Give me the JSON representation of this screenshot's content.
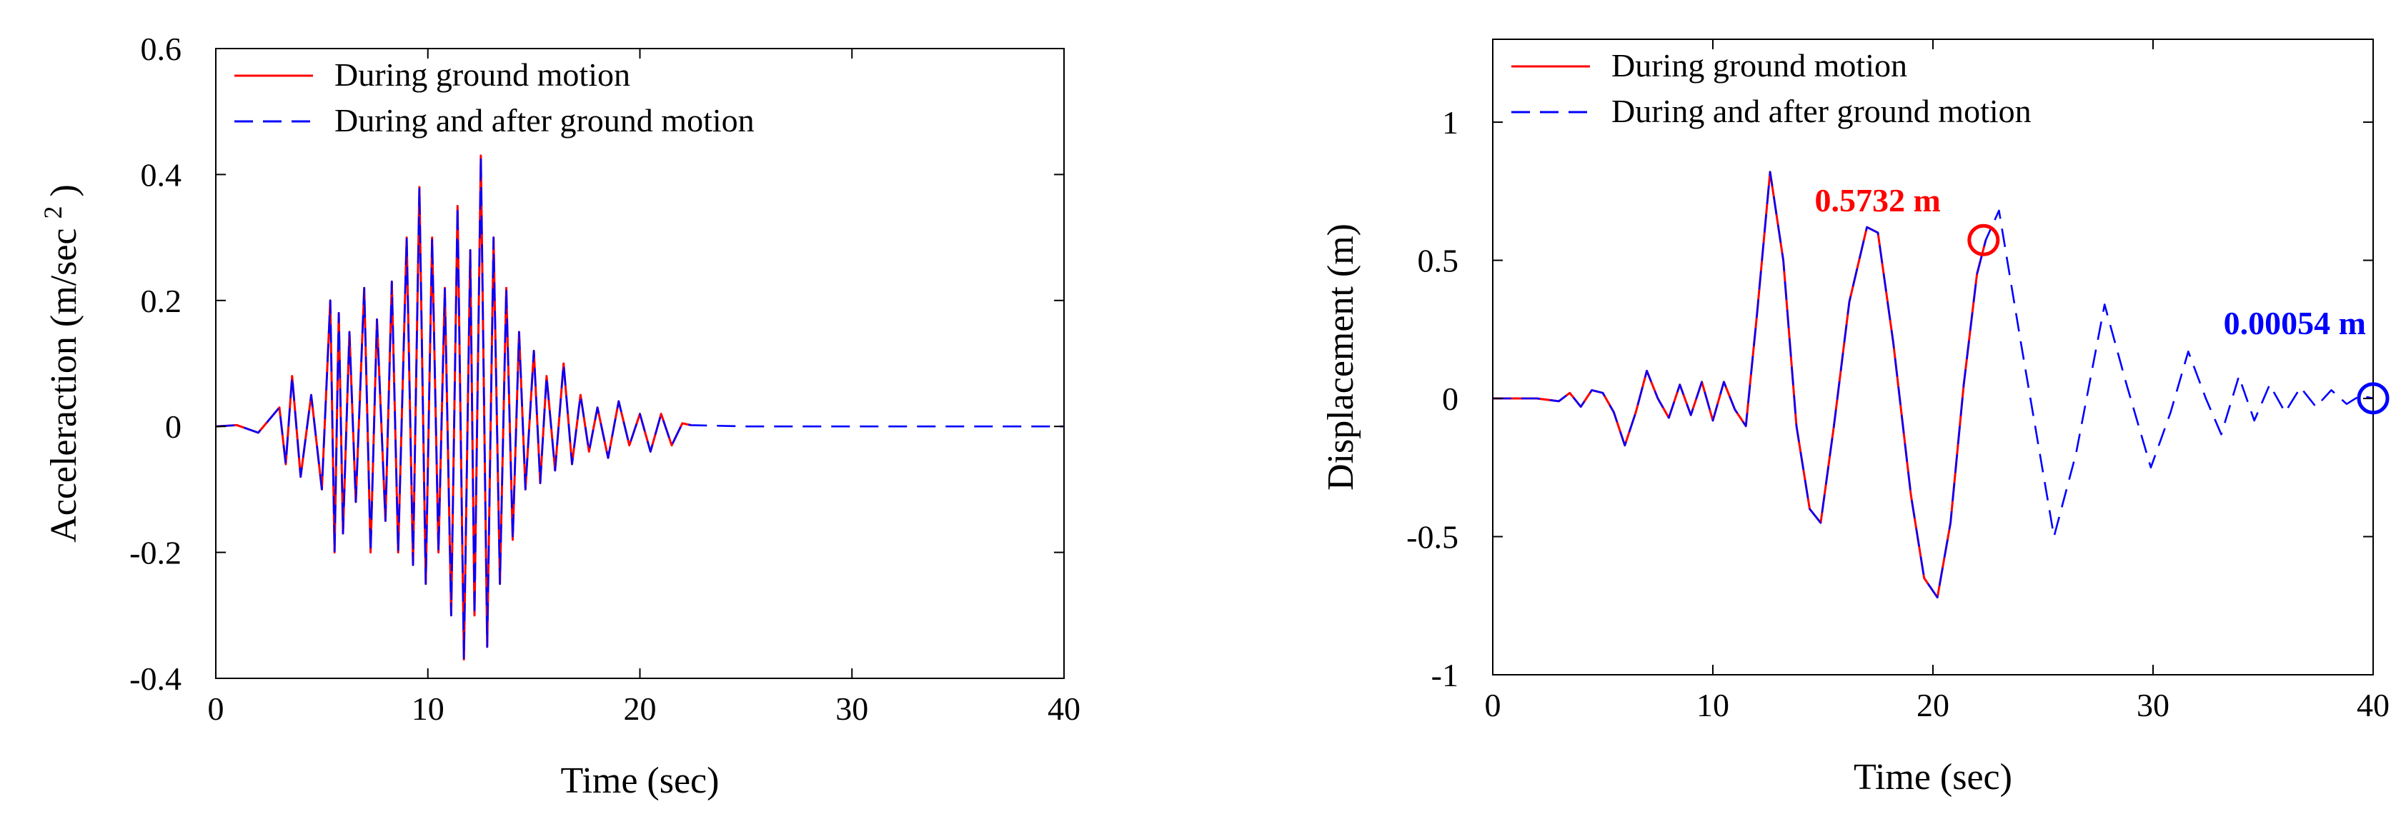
{
  "colors": {
    "during": "#ff0000",
    "during_after": "#0000ff",
    "axis": "#000000"
  },
  "chart_data": [
    {
      "type": "line",
      "xlabel": "Time (sec)",
      "ylabel": "Acceleraction (m/sec ",
      "ylabel_sup": "2",
      "ylabel_close": " )",
      "xlim": [
        0,
        40
      ],
      "ylim": [
        -0.4,
        0.6
      ],
      "xticks": [
        0,
        10,
        20,
        30,
        40
      ],
      "xtick_labels": [
        "0",
        "10",
        "20",
        "30",
        "40"
      ],
      "yticks": [
        -0.4,
        -0.2,
        0,
        0.2,
        0.4,
        0.6
      ],
      "ytick_labels": [
        "-0.4",
        "-0.2",
        "0",
        "0.2",
        "0.4",
        "0.6"
      ],
      "grid": false,
      "legend_position": "top-left",
      "series": [
        {
          "name": "During ground motion",
          "color": "#ff0000",
          "dash": "solid",
          "x": [
            0,
            1.0,
            2.0,
            3.0,
            3.3,
            3.6,
            4.0,
            4.5,
            5.0,
            5.4,
            5.6,
            5.8,
            6.0,
            6.3,
            6.6,
            7.0,
            7.3,
            7.6,
            8.0,
            8.3,
            8.6,
            9.0,
            9.3,
            9.6,
            9.9,
            10.2,
            10.5,
            10.8,
            11.1,
            11.4,
            11.7,
            12.0,
            12.2,
            12.5,
            12.8,
            13.1,
            13.4,
            13.7,
            14.0,
            14.3,
            14.6,
            15.0,
            15.3,
            15.6,
            16.0,
            16.4,
            16.8,
            17.2,
            17.6,
            18.0,
            18.5,
            19.0,
            19.5,
            20.0,
            20.5,
            21.0,
            21.5,
            22.0,
            22.4
          ],
          "y": [
            0,
            0.002,
            -0.01,
            0.03,
            -0.06,
            0.08,
            -0.08,
            0.05,
            -0.1,
            0.2,
            -0.2,
            0.18,
            -0.17,
            0.15,
            -0.12,
            0.22,
            -0.2,
            0.17,
            -0.15,
            0.23,
            -0.2,
            0.3,
            -0.22,
            0.38,
            -0.25,
            0.3,
            -0.2,
            0.22,
            -0.3,
            0.35,
            -0.37,
            0.28,
            -0.3,
            0.43,
            -0.35,
            0.3,
            -0.25,
            0.22,
            -0.18,
            0.15,
            -0.1,
            0.12,
            -0.09,
            0.08,
            -0.07,
            0.1,
            -0.06,
            0.05,
            -0.04,
            0.03,
            -0.05,
            0.04,
            -0.03,
            0.02,
            -0.04,
            0.02,
            -0.03,
            0.005,
            0.002
          ]
        },
        {
          "name": "During and after ground motion",
          "color": "#0000ff",
          "dash": "dashed",
          "x": [
            0,
            1.0,
            2.0,
            3.0,
            3.3,
            3.6,
            4.0,
            4.5,
            5.0,
            5.4,
            5.6,
            5.8,
            6.0,
            6.3,
            6.6,
            7.0,
            7.3,
            7.6,
            8.0,
            8.3,
            8.6,
            9.0,
            9.3,
            9.6,
            9.9,
            10.2,
            10.5,
            10.8,
            11.1,
            11.4,
            11.7,
            12.0,
            12.2,
            12.5,
            12.8,
            13.1,
            13.4,
            13.7,
            14.0,
            14.3,
            14.6,
            15.0,
            15.3,
            15.6,
            16.0,
            16.4,
            16.8,
            17.2,
            17.6,
            18.0,
            18.5,
            19.0,
            19.5,
            20.0,
            20.5,
            21.0,
            21.5,
            22.0,
            22.4,
            25.0,
            30.0,
            35.0,
            40.0
          ],
          "y": [
            0,
            0.002,
            -0.01,
            0.03,
            -0.06,
            0.08,
            -0.08,
            0.05,
            -0.1,
            0.2,
            -0.2,
            0.18,
            -0.17,
            0.15,
            -0.12,
            0.22,
            -0.2,
            0.17,
            -0.15,
            0.23,
            -0.2,
            0.3,
            -0.22,
            0.38,
            -0.25,
            0.3,
            -0.2,
            0.22,
            -0.3,
            0.35,
            -0.37,
            0.28,
            -0.3,
            0.43,
            -0.35,
            0.3,
            -0.25,
            0.22,
            -0.18,
            0.15,
            -0.1,
            0.12,
            -0.09,
            0.08,
            -0.07,
            0.1,
            -0.06,
            0.05,
            -0.04,
            0.03,
            -0.05,
            0.04,
            -0.03,
            0.02,
            -0.04,
            0.02,
            -0.03,
            0.005,
            0.002,
            0,
            0,
            0,
            0
          ]
        }
      ]
    },
    {
      "type": "line",
      "xlabel": "Time (sec)",
      "ylabel": "Displacement (m)",
      "xlim": [
        0,
        40
      ],
      "ylim": [
        -1.0,
        1.3
      ],
      "xticks": [
        0,
        10,
        20,
        30,
        40
      ],
      "xtick_labels": [
        "0",
        "10",
        "20",
        "30",
        "40"
      ],
      "yticks": [
        -1,
        -0.5,
        0,
        0.5,
        1
      ],
      "ytick_labels": [
        "-1",
        "-0.5",
        "0",
        "0.5",
        "1"
      ],
      "grid": false,
      "legend_position": "top-left",
      "annotations": [
        {
          "text": "0.5732 m",
          "x": 22.3,
          "y": 0.5732,
          "color": "#ff0000",
          "marker": "circle"
        },
        {
          "text": "0.00054 m",
          "x": 40,
          "y": 0.00054,
          "color": "#0000ff",
          "marker": "circle"
        }
      ],
      "series": [
        {
          "name": "During ground motion",
          "color": "#ff0000",
          "dash": "solid",
          "x": [
            0,
            2.0,
            3.0,
            3.5,
            4.0,
            4.5,
            5.0,
            5.5,
            6.0,
            6.5,
            7.0,
            7.5,
            8.0,
            8.5,
            9.0,
            9.5,
            10.0,
            10.5,
            11.0,
            11.5,
            12.0,
            12.6,
            13.2,
            13.8,
            14.4,
            14.9,
            15.5,
            16.2,
            17.0,
            17.5,
            18.2,
            19.0,
            19.6,
            20.2,
            20.8,
            21.4,
            22.0,
            22.4
          ],
          "y": [
            0,
            0,
            -0.01,
            0.02,
            -0.03,
            0.03,
            0.02,
            -0.05,
            -0.17,
            -0.05,
            0.1,
            0.0,
            -0.07,
            0.05,
            -0.06,
            0.06,
            -0.08,
            0.06,
            -0.04,
            -0.1,
            0.3,
            0.82,
            0.5,
            -0.1,
            -0.4,
            -0.45,
            -0.1,
            0.35,
            0.62,
            0.6,
            0.2,
            -0.35,
            -0.65,
            -0.72,
            -0.45,
            0.05,
            0.45,
            0.5732
          ]
        },
        {
          "name": "During and after ground motion",
          "color": "#0000ff",
          "dash": "dashed",
          "x": [
            0,
            2.0,
            3.0,
            3.5,
            4.0,
            4.5,
            5.0,
            5.5,
            6.0,
            6.5,
            7.0,
            7.5,
            8.0,
            8.5,
            9.0,
            9.5,
            10.0,
            10.5,
            11.0,
            11.5,
            12.0,
            12.6,
            13.2,
            13.8,
            14.4,
            14.9,
            15.5,
            16.2,
            17.0,
            17.5,
            18.2,
            19.0,
            19.6,
            20.2,
            20.8,
            21.4,
            22.0,
            22.4,
            23.0,
            24.0,
            25.5,
            26.5,
            27.8,
            28.8,
            29.9,
            30.8,
            31.6,
            32.4,
            33.1,
            33.9,
            34.6,
            35.3,
            36.0,
            36.7,
            37.4,
            38.1,
            38.8,
            39.4,
            40.0
          ],
          "y": [
            0,
            0,
            -0.01,
            0.02,
            -0.03,
            0.03,
            0.02,
            -0.05,
            -0.17,
            -0.05,
            0.1,
            0.0,
            -0.07,
            0.05,
            -0.06,
            0.06,
            -0.08,
            0.06,
            -0.04,
            -0.1,
            0.3,
            0.82,
            0.5,
            -0.1,
            -0.4,
            -0.45,
            -0.1,
            0.35,
            0.62,
            0.6,
            0.2,
            -0.35,
            -0.65,
            -0.72,
            -0.45,
            0.05,
            0.45,
            0.5732,
            0.68,
            0.2,
            -0.5,
            -0.2,
            0.34,
            0.05,
            -0.25,
            -0.05,
            0.17,
            0.0,
            -0.13,
            0.08,
            -0.08,
            0.05,
            -0.05,
            0.04,
            -0.03,
            0.03,
            -0.02,
            0.01,
            0.00054
          ]
        }
      ]
    }
  ]
}
